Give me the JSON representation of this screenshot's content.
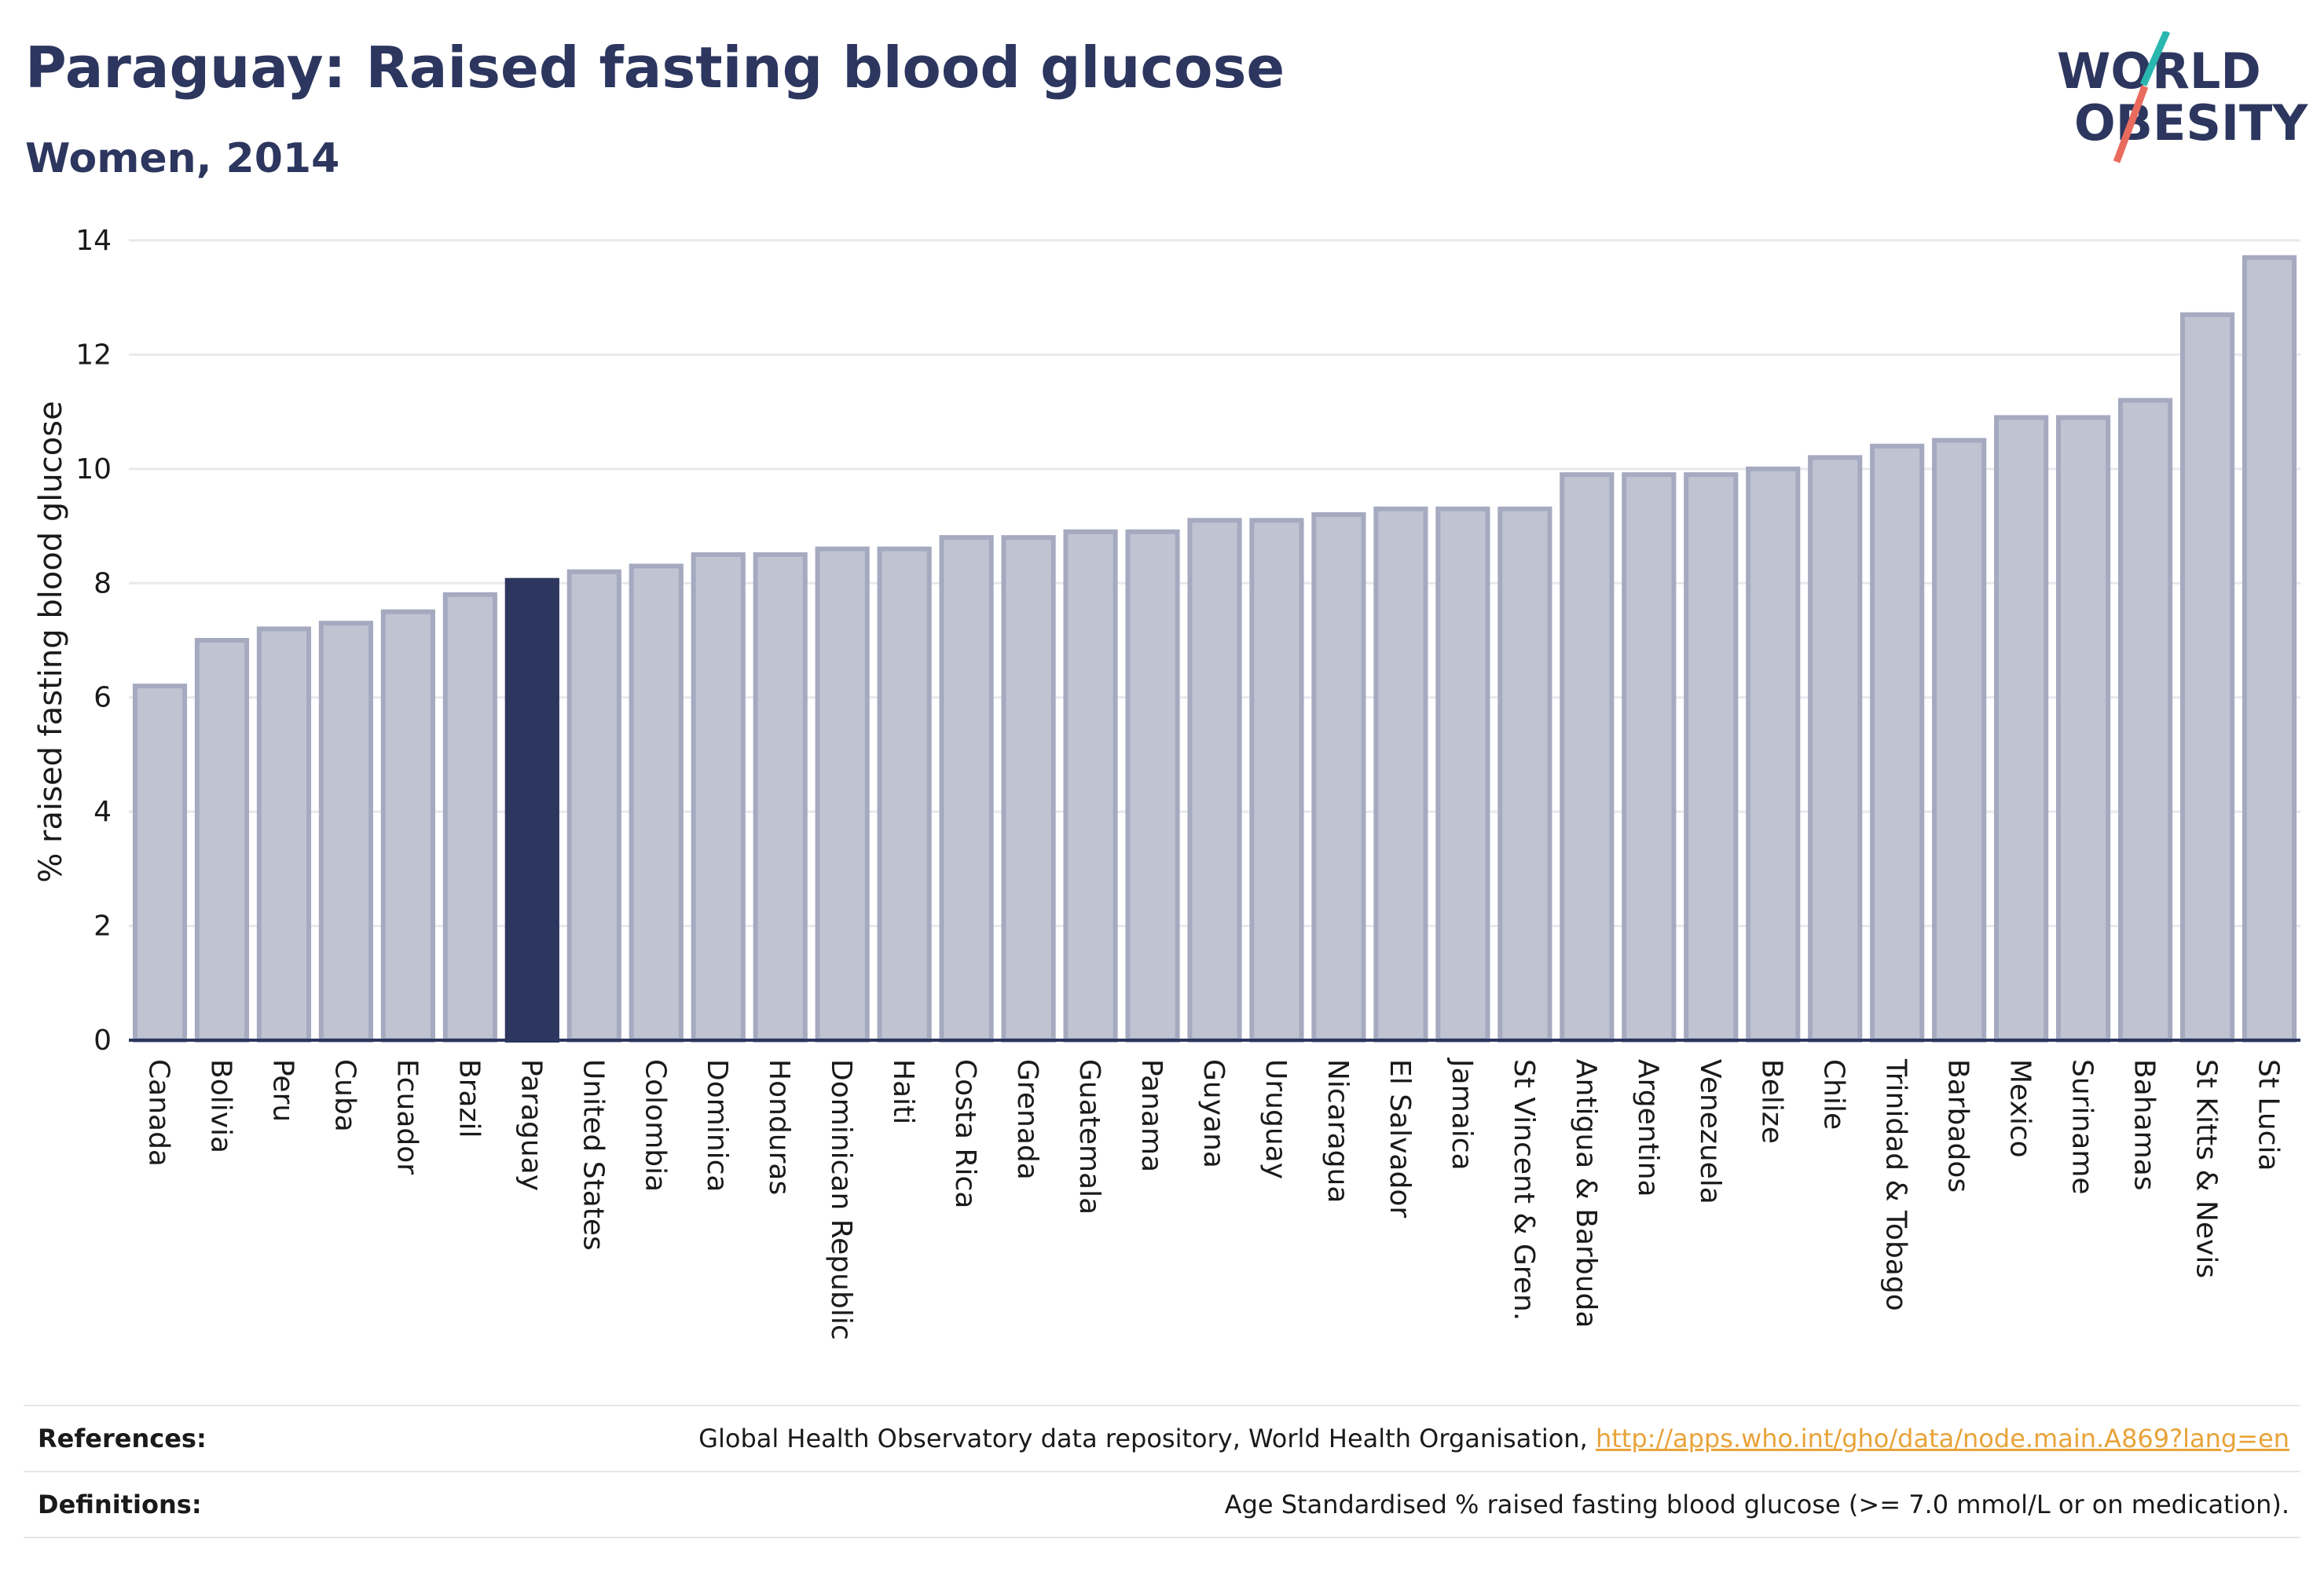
{
  "header": {
    "title": "Paraguay: Raised fasting blood glucose",
    "subtitle": "Women, 2014"
  },
  "logo": {
    "line1": "WORLD",
    "line2": "OBESITY",
    "slash_colors": [
      "#2ab7b0",
      "#e96b5e"
    ],
    "text_color": "#2c365e"
  },
  "chart_data": {
    "type": "bar",
    "title": "Paraguay: Raised fasting blood glucose",
    "subtitle": "Women, 2014",
    "ylabel": "% raised fasting blood glucose",
    "xlabel": "",
    "ylim": [
      0,
      14
    ],
    "yticks": [
      0,
      2,
      4,
      6,
      8,
      10,
      12,
      14
    ],
    "grid": true,
    "highlight": "Paraguay",
    "colors": {
      "bar": "#c0c4d2",
      "bar_border": "#a5aac0",
      "highlight": "#2c365e",
      "grid": "#e8e8ee",
      "axis": "#2c365e"
    },
    "categories": [
      "Canada",
      "Bolivia",
      "Peru",
      "Cuba",
      "Ecuador",
      "Brazil",
      "Paraguay",
      "United States",
      "Colombia",
      "Dominica",
      "Honduras",
      "Dominican Republic",
      "Haiti",
      "Costa Rica",
      "Grenada",
      "Guatemala",
      "Panama",
      "Guyana",
      "Uruguay",
      "Nicaragua",
      "El Salvador",
      "Jamaica",
      "St Vincent & Gren.",
      "Antigua & Barbuda",
      "Argentina",
      "Venezuela",
      "Belize",
      "Chile",
      "Trinidad & Tobago",
      "Barbados",
      "Mexico",
      "Suriname",
      "Bahamas",
      "St Kitts & Nevis",
      "St Lucia"
    ],
    "values": [
      6.2,
      7.0,
      7.2,
      7.3,
      7.5,
      7.8,
      8.05,
      8.2,
      8.3,
      8.5,
      8.5,
      8.6,
      8.6,
      8.8,
      8.8,
      8.9,
      8.9,
      9.1,
      9.1,
      9.2,
      9.3,
      9.3,
      9.3,
      9.9,
      9.9,
      9.9,
      10.0,
      10.2,
      10.4,
      10.5,
      10.9,
      10.9,
      11.2,
      12.7,
      13.7
    ]
  },
  "references": {
    "label": "References:",
    "text": "Global Health Observatory data repository, World Health Organisation, ",
    "link": "http://apps.who.int/gho/data/node.main.A869?lang=en"
  },
  "definitions": {
    "label": "Definitions:",
    "text": "Age Standardised % raised fasting blood glucose (>= 7.0 mmol/L or on medication)."
  }
}
